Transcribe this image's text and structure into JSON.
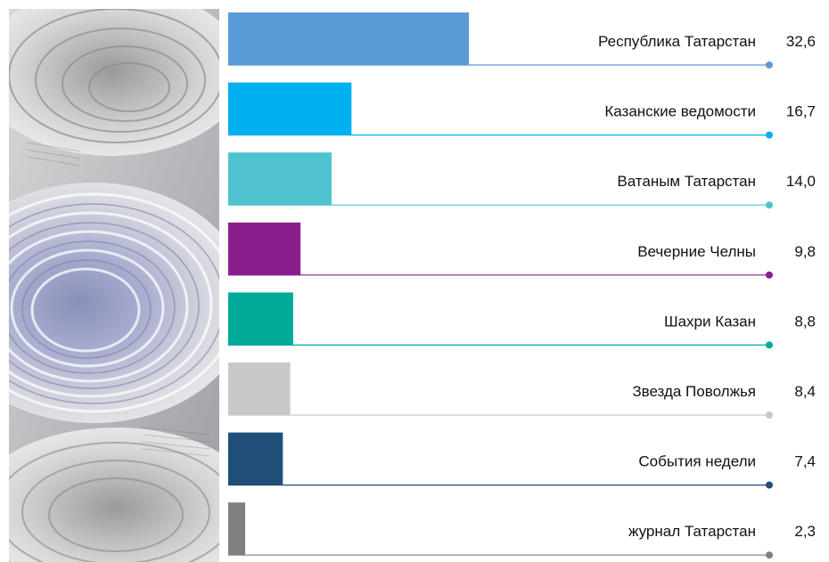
{
  "chart_data": {
    "type": "bar",
    "orientation": "horizontal",
    "categories": [
      "Республика  Татарстан",
      "Казанские ведомости",
      "Ватаным Татарстан",
      "Вечерние Челны",
      "Шахри Казан",
      "Звезда Поволжья",
      "События недели",
      "журнал Татарстан"
    ],
    "values": [
      32.6,
      16.7,
      14.0,
      9.8,
      8.8,
      8.4,
      7.4,
      2.3
    ],
    "value_labels": [
      "32,6",
      "16,7",
      "14,0",
      "9,8",
      "8,8",
      "8,4",
      "7,4",
      "2,3"
    ],
    "colors": [
      "#5b9bd5",
      "#00b0f0",
      "#4fc3cf",
      "#8b1e8c",
      "#00aa99",
      "#c8c8c8",
      "#1f4e79",
      "#7f7f7f"
    ],
    "title": "",
    "xlabel": "",
    "ylabel": "",
    "grid": false,
    "legend": "none"
  },
  "photo": {
    "icon": "newspaper-rolls-photo"
  }
}
